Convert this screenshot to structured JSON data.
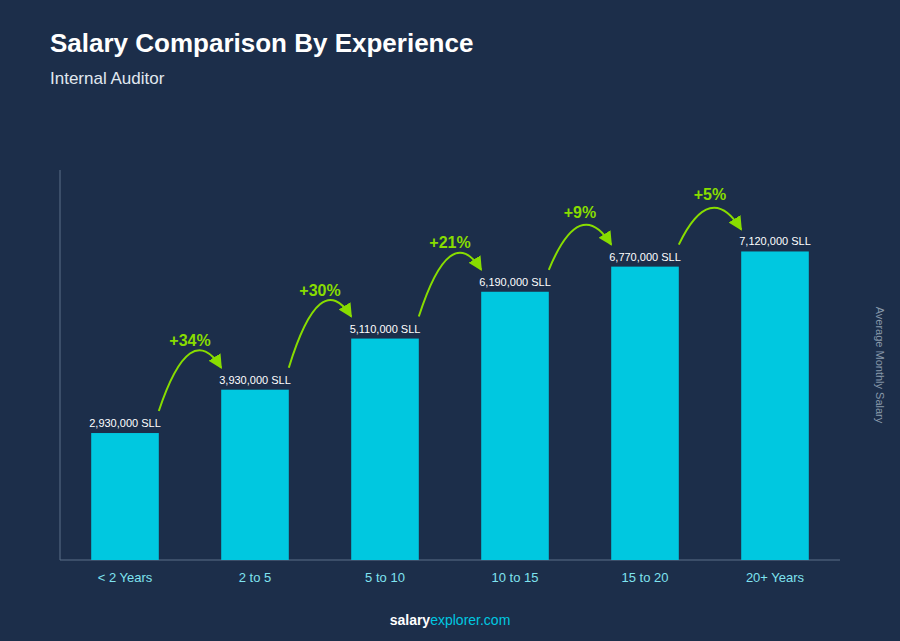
{
  "chart_data": {
    "type": "bar",
    "title": "Salary Comparison By Experience",
    "subtitle": "Internal Auditor",
    "ylabel": "Average Monthly Salary",
    "categories": [
      "< 2 Years",
      "2 to 5",
      "5 to 10",
      "10 to 15",
      "15 to 20",
      "20+ Years"
    ],
    "values": [
      2930000,
      3930000,
      5110000,
      6190000,
      6770000,
      7120000
    ],
    "value_labels": [
      "2,930,000 SLL",
      "3,930,000 SLL",
      "5,110,000 SLL",
      "6,190,000 SLL",
      "6,770,000 SLL",
      "7,120,000 SLL"
    ],
    "data_labels": true,
    "annotations": [
      "+34%",
      "+30%",
      "+21%",
      "+9%",
      "+5%"
    ],
    "footer": [
      "salary",
      "explorer.com"
    ],
    "color": "#00c8e0",
    "ylim": [
      0,
      9000000
    ],
    "grid": false,
    "tick_labels": "x"
  }
}
